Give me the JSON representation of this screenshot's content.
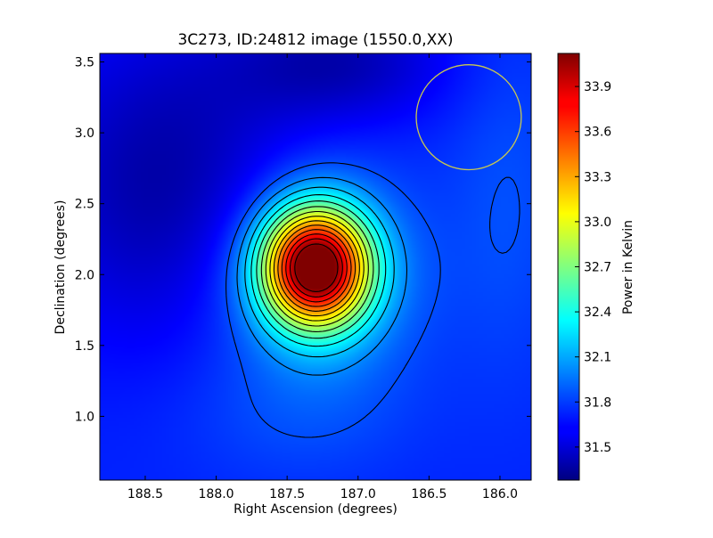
{
  "chart_data": {
    "type": "heatmap",
    "title": "3C273, ID:24812 image (1550.0,XX)",
    "xlabel": "Right Ascension (degrees)",
    "ylabel": "Declination (degrees)",
    "xlim": [
      188.82,
      185.78
    ],
    "ylim": [
      0.55,
      3.56
    ],
    "x_ticks": [
      188.5,
      188.0,
      187.5,
      187.0,
      186.5,
      186.0
    ],
    "x_tick_labels": [
      "188.5",
      "188.0",
      "187.5",
      "187.0",
      "186.5",
      "186.0"
    ],
    "y_ticks": [
      1.0,
      1.5,
      2.0,
      2.5,
      3.0,
      3.5
    ],
    "y_tick_labels": [
      "1.0",
      "1.5",
      "2.0",
      "2.5",
      "3.0",
      "3.5"
    ],
    "colorbar": {
      "label": "Power in Kelvin",
      "range": [
        31.28,
        34.12
      ],
      "ticks": [
        31.5,
        31.8,
        32.1,
        32.4,
        32.7,
        33.0,
        33.3,
        33.6,
        33.9
      ],
      "tick_labels": [
        "31.5",
        "31.8",
        "32.1",
        "32.4",
        "32.7",
        "33.0",
        "33.3",
        "33.6",
        "33.9"
      ],
      "colormap": "jet"
    },
    "peak": {
      "ra": 187.25,
      "dec": 2.05,
      "value": 34.1
    },
    "background_level": 31.7,
    "marker_circle": {
      "ra": 186.22,
      "dec": 3.11,
      "radius_deg": 0.37,
      "color": "#c8c850"
    },
    "contours": true,
    "grid": false
  }
}
